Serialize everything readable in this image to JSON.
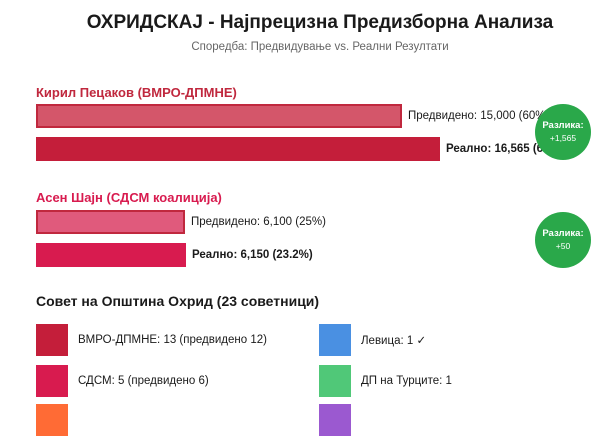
{
  "title": "ОХРИДСКАЈ - Најпрецизна Предизборна Анализа",
  "subtitle": "Споредба: Предвидување vs. Реални Резултати",
  "candidates": [
    {
      "name": "Кирил Пецаков (ВМРО-ДПМНЕ)",
      "name_color": "#c0283e",
      "predicted_label": "Предвидено: 15,000 (60%)",
      "predicted_value": 15000,
      "actual_label": "Реално: 16,565 (66.3%)",
      "actual_value": 16565,
      "badge_title": "Разлика:",
      "badge_value": "+1,565"
    },
    {
      "name": "Асен Шајн (СДСМ коалиција)",
      "name_color": "#d81b4f",
      "predicted_label": "Предвидено: 6,100 (25%)",
      "predicted_value": 6100,
      "actual_label": "Реално: 6,150 (23.2%)",
      "actual_value": 6150,
      "badge_title": "Разлика:",
      "badge_value": "+50"
    }
  ],
  "colors": {
    "vmro_pred": "#d4566a",
    "vmro_actual": "#c41e3a",
    "sdsm_pred": "#e05a7c",
    "sdsm_actual": "#d81b4f",
    "badge": "#2aa84a"
  },
  "council": {
    "title": "Совет на Општина Охрид (23 советници)",
    "items": [
      {
        "label": "ВМРО-ДПМНЕ: 13 (предвидено 12)",
        "color": "#c41e3a"
      },
      {
        "label": "Левица: 1 ✓",
        "color": "#4a90e2"
      },
      {
        "label": "СДСМ: 5 (предвидено 6)",
        "color": "#d81b4f"
      },
      {
        "label": "ДП на Турците: 1",
        "color": "#50c878"
      },
      {
        "label": "",
        "color": "#ff6b35"
      },
      {
        "label": "",
        "color": "#9b59d0"
      }
    ]
  }
}
